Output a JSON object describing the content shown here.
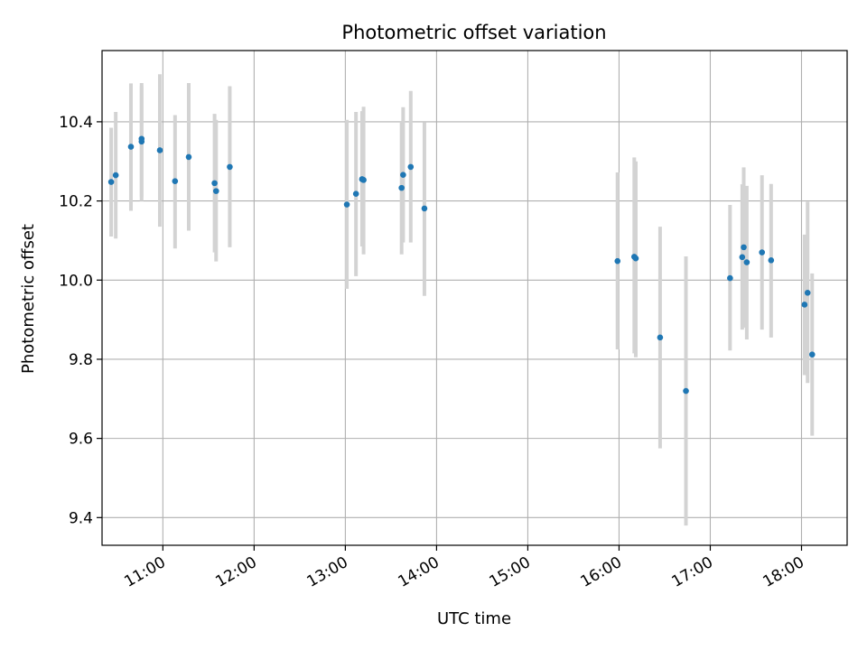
{
  "chart_data": {
    "type": "scatter",
    "title": "Photometric offset variation",
    "xlabel": "UTC time",
    "ylabel": "Photometric offset",
    "xlim": [
      "10:20",
      "18:30"
    ],
    "ylim": [
      9.33,
      10.58
    ],
    "x_ticks": [
      "11:00",
      "12:00",
      "13:00",
      "14:00",
      "15:00",
      "16:00",
      "17:00",
      "18:00"
    ],
    "y_ticks": [
      "9.4",
      "9.6",
      "9.8",
      "10.0",
      "10.2",
      "10.4"
    ],
    "grid": true,
    "colors": {
      "marker": "#1f77b4",
      "errorbar": "#d3d3d3"
    },
    "points": [
      {
        "x": "10:26",
        "y": 10.248,
        "low": 10.11,
        "high": 10.385
      },
      {
        "x": "10:29",
        "y": 10.265,
        "low": 10.105,
        "high": 10.425
      },
      {
        "x": "10:39",
        "y": 10.337,
        "low": 10.175,
        "high": 10.497
      },
      {
        "x": "10:46",
        "y": 10.357,
        "low": 10.2,
        "high": 10.498
      },
      {
        "x": "10:46",
        "y": 10.35,
        "low": 10.21,
        "high": 10.49
      },
      {
        "x": "10:58",
        "y": 10.328,
        "low": 10.135,
        "high": 10.52
      },
      {
        "x": "11:08",
        "y": 10.25,
        "low": 10.08,
        "high": 10.417
      },
      {
        "x": "11:17",
        "y": 10.311,
        "low": 10.125,
        "high": 10.498
      },
      {
        "x": "11:34",
        "y": 10.245,
        "low": 10.07,
        "high": 10.42
      },
      {
        "x": "11:35",
        "y": 10.225,
        "low": 10.047,
        "high": 10.405
      },
      {
        "x": "11:44",
        "y": 10.286,
        "low": 10.083,
        "high": 10.49
      },
      {
        "x": "13:01",
        "y": 10.191,
        "low": 9.978,
        "high": 10.405
      },
      {
        "x": "13:07",
        "y": 10.218,
        "low": 10.01,
        "high": 10.425
      },
      {
        "x": "13:11",
        "y": 10.255,
        "low": 10.085,
        "high": 10.427
      },
      {
        "x": "13:12",
        "y": 10.253,
        "low": 10.065,
        "high": 10.438
      },
      {
        "x": "13:37",
        "y": 10.233,
        "low": 10.065,
        "high": 10.4
      },
      {
        "x": "13:38",
        "y": 10.266,
        "low": 10.095,
        "high": 10.437
      },
      {
        "x": "13:43",
        "y": 10.286,
        "low": 10.095,
        "high": 10.478
      },
      {
        "x": "13:52",
        "y": 10.181,
        "low": 9.96,
        "high": 10.398
      },
      {
        "x": "15:59",
        "y": 10.048,
        "low": 9.825,
        "high": 10.272
      },
      {
        "x": "16:10",
        "y": 10.059,
        "low": 9.815,
        "high": 10.31
      },
      {
        "x": "16:11",
        "y": 10.055,
        "low": 9.805,
        "high": 10.3
      },
      {
        "x": "16:27",
        "y": 9.855,
        "low": 9.575,
        "high": 10.135
      },
      {
        "x": "16:44",
        "y": 9.72,
        "low": 9.38,
        "high": 10.06
      },
      {
        "x": "17:13",
        "y": 10.005,
        "low": 9.822,
        "high": 10.19
      },
      {
        "x": "17:21",
        "y": 10.058,
        "low": 9.875,
        "high": 10.242
      },
      {
        "x": "17:22",
        "y": 10.083,
        "low": 9.88,
        "high": 10.285
      },
      {
        "x": "17:24",
        "y": 10.045,
        "low": 9.85,
        "high": 10.238
      },
      {
        "x": "17:34",
        "y": 10.07,
        "low": 9.875,
        "high": 10.265
      },
      {
        "x": "17:40",
        "y": 10.05,
        "low": 9.855,
        "high": 10.243
      },
      {
        "x": "18:02",
        "y": 9.938,
        "low": 9.76,
        "high": 10.115
      },
      {
        "x": "18:04",
        "y": 9.968,
        "low": 9.74,
        "high": 10.198
      },
      {
        "x": "18:07",
        "y": 9.812,
        "low": 9.607,
        "high": 10.017
      }
    ]
  }
}
